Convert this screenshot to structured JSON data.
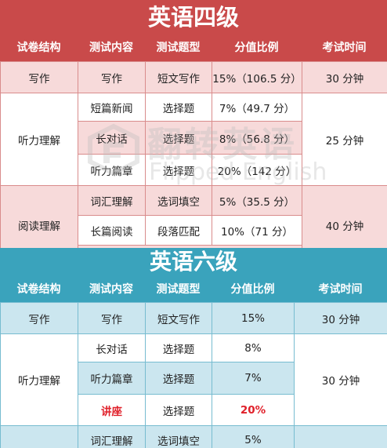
{
  "cet4": {
    "title": "英语四级",
    "headers": [
      "试卷结构",
      "测试内容",
      "测试题型",
      "分值比例",
      "考试时间"
    ],
    "writing": {
      "section": "写作",
      "content": "写作",
      "type": "短文写作",
      "ratio": "15%（106.5 分）",
      "time": "30 分钟"
    },
    "listening": {
      "section": "听力理解",
      "time": "25 分钟",
      "rows": [
        {
          "content": "短篇新闻",
          "type": "选择题",
          "ratio": "7%（49.7 分）"
        },
        {
          "content": "长对话",
          "type": "选择题",
          "ratio": "8%（56.8 分）"
        },
        {
          "content": "听力篇章",
          "type": "选择题",
          "ratio": "20%（142 分）"
        }
      ]
    },
    "reading": {
      "section": "阅读理解",
      "time": "40 分钟",
      "rows": [
        {
          "content": "词汇理解",
          "type": "选词填空",
          "ratio": "5%（35.5 分）"
        },
        {
          "content": "长篇阅读",
          "type": "段落匹配",
          "ratio": "10%（71 分）"
        }
      ]
    }
  },
  "cet6": {
    "title": "英语六级",
    "headers": [
      "试卷结构",
      "测试内容",
      "测试题型",
      "分值比例",
      "考试时间"
    ],
    "writing": {
      "section": "写作",
      "content": "写作",
      "type": "短文写作",
      "ratio": "15%",
      "time": "30 分钟"
    },
    "listening": {
      "section": "听力理解",
      "time": "30 分钟",
      "rows": [
        {
          "content": "长对话",
          "type": "选择题",
          "ratio": "8%"
        },
        {
          "content": "听力篇章",
          "type": "选择题",
          "ratio": "7%"
        },
        {
          "content": "讲座",
          "type": "选择题",
          "ratio": "20%"
        }
      ]
    },
    "reading": {
      "rows": [
        {
          "content": "词汇理解",
          "type": "选词填空",
          "ratio": "5%"
        }
      ]
    }
  },
  "watermark": {
    "cn": "翻转英语",
    "en": "Flipped English"
  },
  "colors": {
    "cet4_accent": "#c94a4a",
    "cet4_row": "#f7dada",
    "cet6_accent": "#3aa3bc",
    "cet6_row": "#cbe6ef",
    "highlight": "#e0202a"
  }
}
